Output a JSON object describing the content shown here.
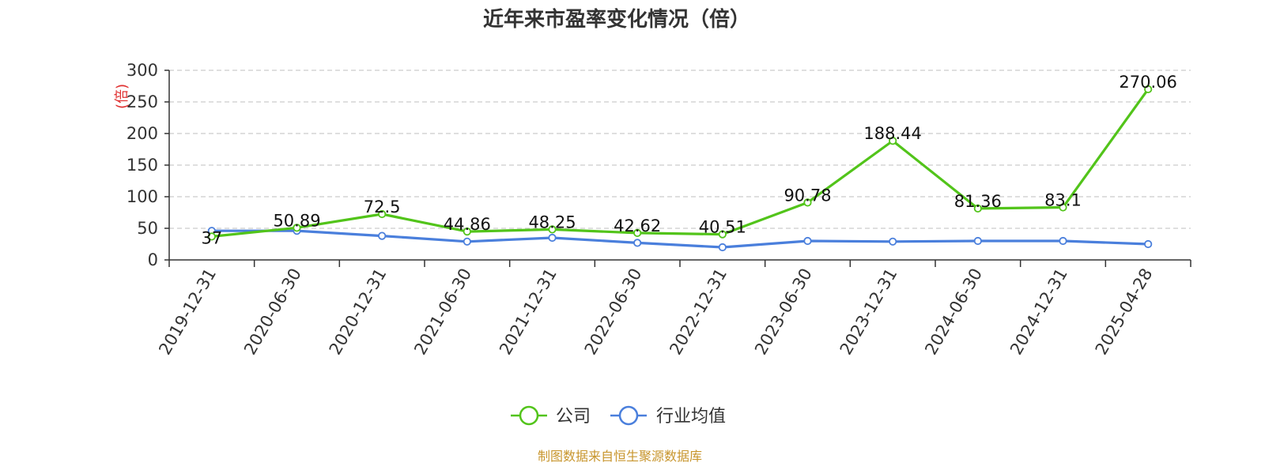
{
  "chart_data": {
    "type": "line",
    "title": "近年来市盈率变化情况（倍）",
    "ylabel": "(倍)",
    "xlabel": "",
    "ylim": [
      0,
      300
    ],
    "yticks": [
      0,
      50,
      100,
      150,
      200,
      250,
      300
    ],
    "grid": true,
    "legend_position": "bottom",
    "categories": [
      "2019-12-31",
      "2020-06-30",
      "2020-12-31",
      "2021-06-30",
      "2021-12-31",
      "2022-06-30",
      "2022-12-31",
      "2023-06-30",
      "2023-12-31",
      "2024-06-30",
      "2024-12-31",
      "2025-04-28"
    ],
    "series": [
      {
        "name": "公司",
        "color": "#52c41a",
        "values": [
          37,
          50.89,
          72.5,
          44.86,
          48.25,
          42.62,
          40.51,
          90.78,
          188.44,
          81.36,
          83.1,
          270.06
        ],
        "labels": [
          "37",
          "50.89",
          "72.5",
          "44.86",
          "48.25",
          "42.62",
          "40.51",
          "90.78",
          "188.44",
          "81.36",
          "83.1",
          "270.06"
        ]
      },
      {
        "name": "行业均值",
        "color": "#4a7fdc",
        "values": [
          46,
          46,
          38,
          29,
          35,
          27,
          20,
          30,
          29,
          30,
          30,
          25
        ]
      }
    ]
  },
  "source": {
    "text": "制图数据来自恒生聚源数据库",
    "color": "#c8962e"
  },
  "colors": {
    "ylabel": "#e03030",
    "axis": "#333333",
    "grid": "#cccccc"
  }
}
